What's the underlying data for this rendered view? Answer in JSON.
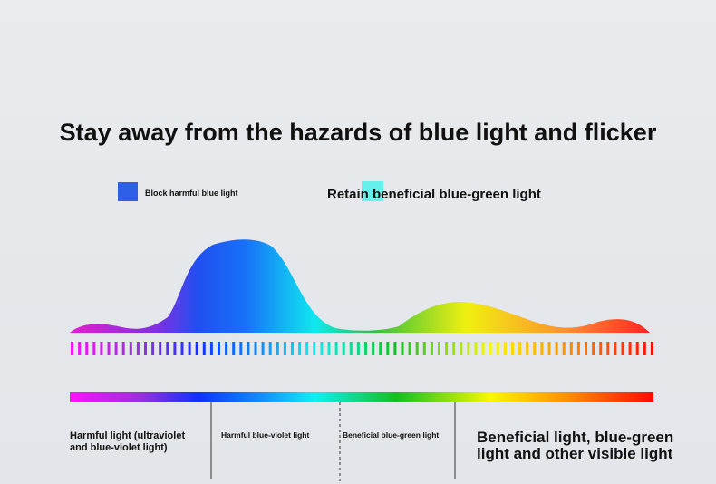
{
  "title": "Stay away from the hazards of blue light and flicker",
  "legend": [
    "Block harmful blue light",
    "Retain beneficial blue-green light"
  ],
  "bands": [
    {
      "lines": [
        "Harmful light (ultraviolet",
        "and blue-violet light)"
      ]
    },
    {
      "lines": [
        "Harmful blue-violet light"
      ]
    },
    {
      "lines": [
        "Beneficial blue-green light"
      ]
    },
    {
      "lines": [
        "Beneficial light, blue-green",
        "light and other visible light"
      ]
    }
  ]
}
